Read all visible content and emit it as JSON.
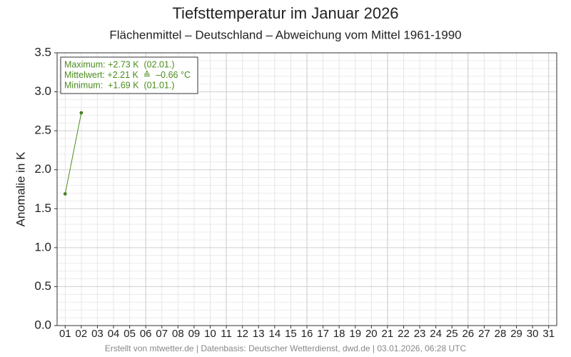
{
  "chart_data": {
    "type": "line",
    "title": "Tiefsttemperatur im Januar 2026",
    "subtitle": "Flächenmittel – Deutschland – Abweichung vom Mittel 1961-1990",
    "y_label": "Anomalie in K",
    "footer": "Erstellt von mtwetter.de | Datenbasis: Deutscher Wetterdienst, dwd.de | 03.01.2026, 06:28 UTC",
    "annotations": [
      "Maximum: +2.73 K  (02.01.)",
      "Mittelwert: +2.21 K  ≙  –0.66 °C",
      "Minimum:  +1.69 K  (01.01.)"
    ],
    "categories": [
      "01",
      "02",
      "03",
      "04",
      "05",
      "06",
      "07",
      "08",
      "09",
      "10",
      "11",
      "12",
      "13",
      "14",
      "15",
      "16",
      "17",
      "18",
      "19",
      "20",
      "21",
      "22",
      "23",
      "24",
      "25",
      "26",
      "27",
      "28",
      "29",
      "30",
      "31"
    ],
    "series": [
      {
        "name": "Anomalie",
        "color": "#4a8c1c",
        "values": [
          1.69,
          2.73,
          null,
          null,
          null,
          null,
          null,
          null,
          null,
          null,
          null,
          null,
          null,
          null,
          null,
          null,
          null,
          null,
          null,
          null,
          null,
          null,
          null,
          null,
          null,
          null,
          null,
          null,
          null,
          null,
          null
        ]
      }
    ],
    "ylim": [
      0,
      3.5
    ],
    "yticks": [
      {
        "value": 0,
        "label": "0.0"
      },
      0.5,
      {
        "value": 1,
        "label": "1.0"
      },
      1.5,
      {
        "value": 2,
        "label": "2.0"
      },
      2.5,
      {
        "value": 3,
        "label": "3.0"
      },
      3.5
    ],
    "grid": true
  }
}
